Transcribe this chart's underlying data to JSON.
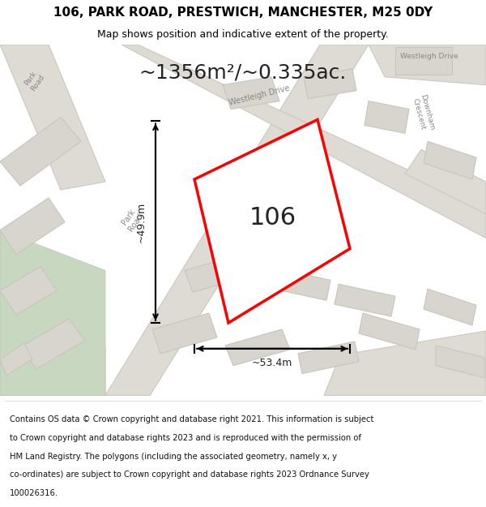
{
  "title": "106, PARK ROAD, PRESTWICH, MANCHESTER, M25 0DY",
  "subtitle": "Map shows position and indicative extent of the property.",
  "area_label": "~1356m²/~0.335ac.",
  "plot_number": "106",
  "width_label": "~53.4m",
  "height_label": "~49.9m",
  "footer_lines": [
    "Contains OS data © Crown copyright and database right 2021. This information is subject",
    "to Crown copyright and database rights 2023 and is reproduced with the permission of",
    "HM Land Registry. The polygons (including the associated geometry, namely x, y",
    "co-ordinates) are subject to Crown copyright and database rights 2023 Ordnance Survey",
    "100026316."
  ],
  "title_fontsize": 11,
  "subtitle_fontsize": 9,
  "area_fontsize": 18,
  "plot_num_fontsize": 22,
  "footer_fontsize": 7.2,
  "map_bg": "#ede9e4",
  "road_fill": "#dedad4",
  "road_edge": "#ccc8c0",
  "building_fill": "#d8d4ce",
  "building_edge": "#c8c4be",
  "green_fill": "#c8d8c0",
  "plot_edge": "#ff0000",
  "plot_fill": "#ffffff"
}
